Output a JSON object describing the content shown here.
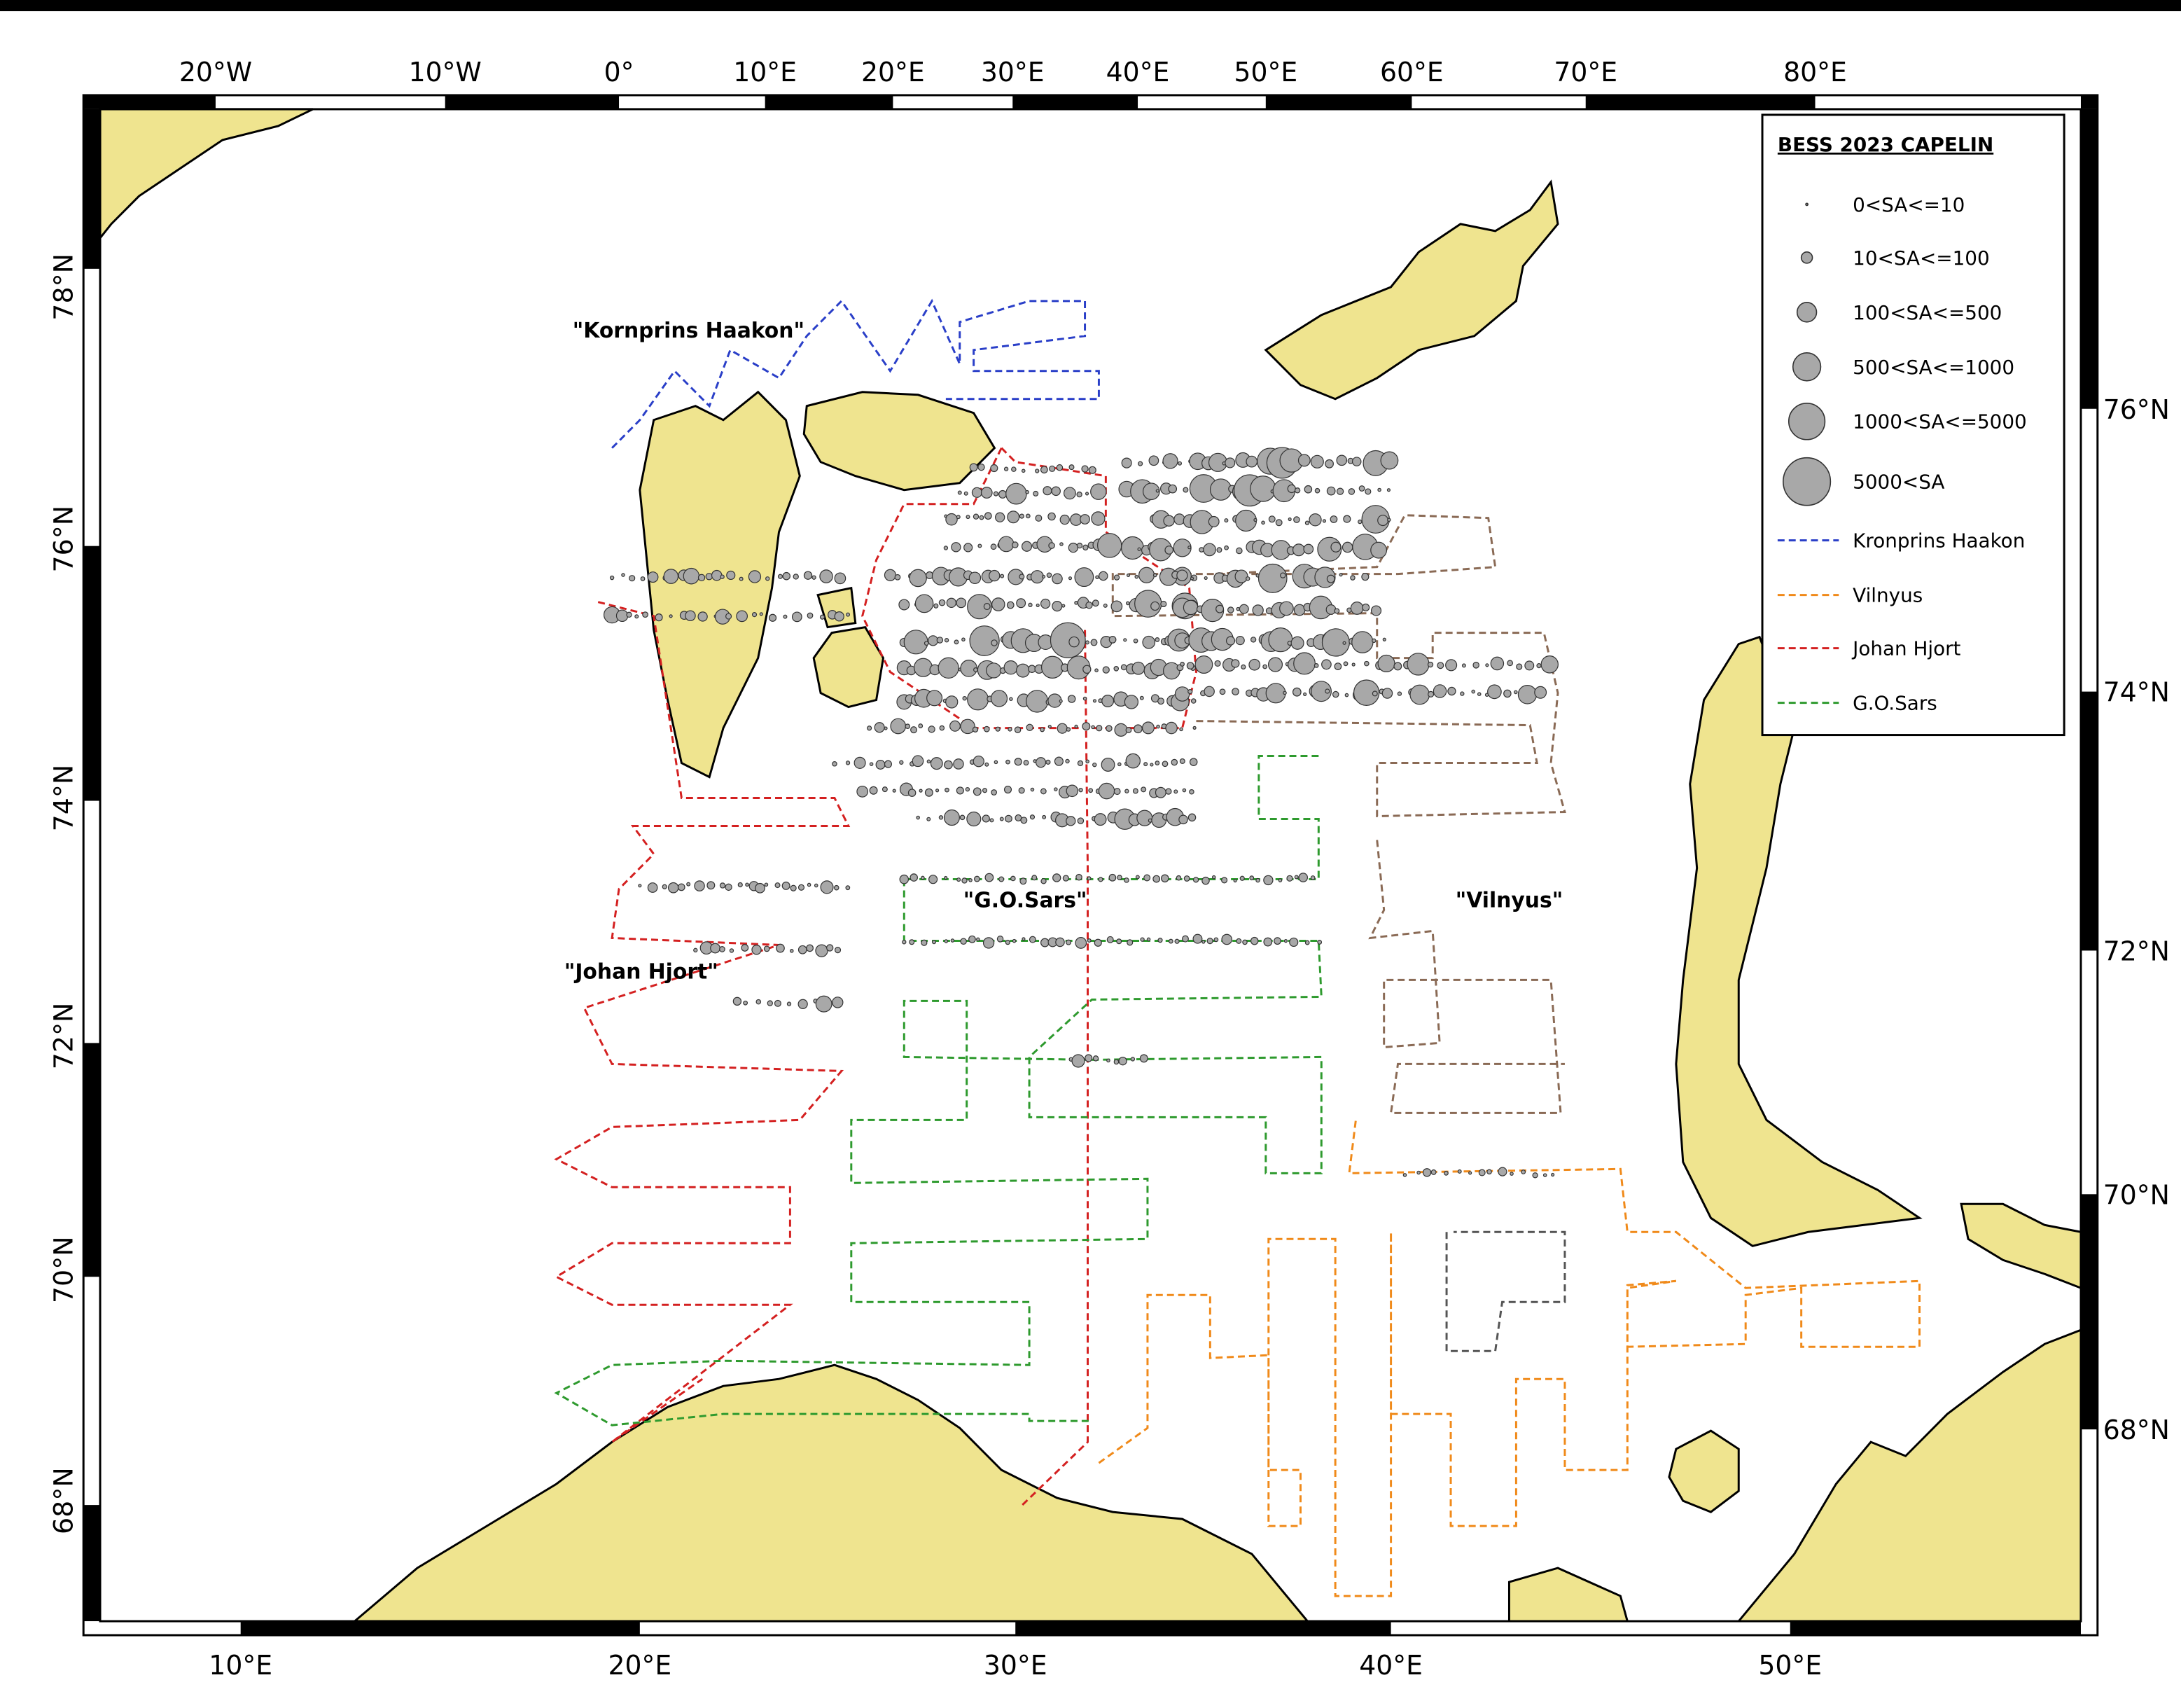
{
  "map": {
    "top_axis_labels": [
      "20°W",
      "10°W",
      "0°",
      "10°E",
      "20°E",
      "30°E",
      "40°E",
      "50°E",
      "60°E",
      "70°E",
      "80°E"
    ],
    "bottom_axis_labels": [
      "10°E",
      "20°E",
      "30°E",
      "40°E",
      "50°E"
    ],
    "left_axis_labels": [
      "78°N",
      "76°N",
      "74°N",
      "72°N",
      "70°N",
      "68°N"
    ],
    "right_axis_labels": [
      "76°N",
      "74°N",
      "72°N",
      "70°N",
      "68°N"
    ],
    "legend": {
      "title": "BESS 2023 CAPELIN",
      "size_classes": [
        "0<SA<=10",
        "10<SA<=100",
        "100<SA<=500",
        "500<SA<=1000",
        "1000<SA<=5000",
        "5000<SA"
      ],
      "vessels": [
        "Kronprins Haakon",
        "Vilnyus",
        "Johan Hjort",
        "G.O.Sars"
      ]
    },
    "vessel_labels": [
      "\"Kornprins Haakon\"",
      "\"G.O.Sars\"",
      "\"Vilnyus\"",
      "\"Johan Hjort\""
    ]
  }
}
